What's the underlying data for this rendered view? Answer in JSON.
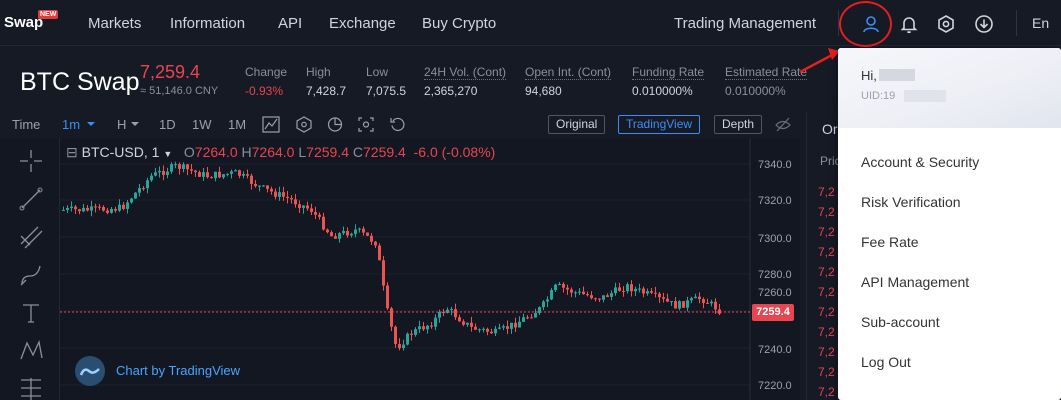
{
  "nav": {
    "brand": "Swap",
    "brand_badge": "NEW",
    "items": [
      "Markets",
      "Information",
      "API",
      "Exchange",
      "Buy Crypto"
    ],
    "trading_management": "Trading Management",
    "language": "En"
  },
  "ticker": {
    "title": "BTC Swap",
    "price": "7,259.4",
    "cny": "≈ 51,146.0 CNY",
    "stats": [
      {
        "label": "Change",
        "value": "-0.93%"
      },
      {
        "label": "High",
        "value": "7,428.7"
      },
      {
        "label": "Low",
        "value": "7,075.5"
      },
      {
        "label": "24H Vol. (Cont)",
        "value": "2,365,270"
      },
      {
        "label": "Open Int. (Cont)",
        "value": "94,680"
      },
      {
        "label": "Funding Rate",
        "value": "0.010000%"
      },
      {
        "label": "Estimated Rate",
        "value": "0.010000%"
      }
    ]
  },
  "toolbar": {
    "time": "Time",
    "interval_active": "1m",
    "hour": "H",
    "day": "1D",
    "week": "1W",
    "month": "1M",
    "original": "Original",
    "tradingview": "TradingView",
    "depth": "Depth"
  },
  "chart": {
    "symbol": "BTC-USD, 1",
    "o_label": "O",
    "o_value": "7264.0",
    "h_label": "H",
    "h_value": "7264.0",
    "l_label": "L",
    "l_value": "7259.4",
    "c_label": "C",
    "c_value": "7259.4",
    "change": "-6.0 (-0.08%)",
    "last_price": "7259.4",
    "axis_labels": [
      "7340.0",
      "7320.0",
      "7300.0",
      "7280.0",
      "7260.0",
      "7240.0",
      "7220.0"
    ],
    "credit": "Chart by TradingView",
    "colors": {
      "up": "#26a69a",
      "down": "#ef5350",
      "last_line": "#e84550"
    }
  },
  "orderbook": {
    "tab": "Or",
    "price_header": "Pric",
    "rows": [
      "7,2",
      "7,2",
      "7,2",
      "7,2",
      "7,2",
      "7,2",
      "7,2",
      "7,2",
      "7,2",
      "7,2",
      "7,2",
      "7,2"
    ]
  },
  "dropdown": {
    "hi": "Hi,",
    "uid": "UID:19",
    "items": [
      "Account & Security",
      "Risk Verification",
      "Fee Rate",
      "API Management",
      "Sub-account",
      "Log Out"
    ]
  }
}
